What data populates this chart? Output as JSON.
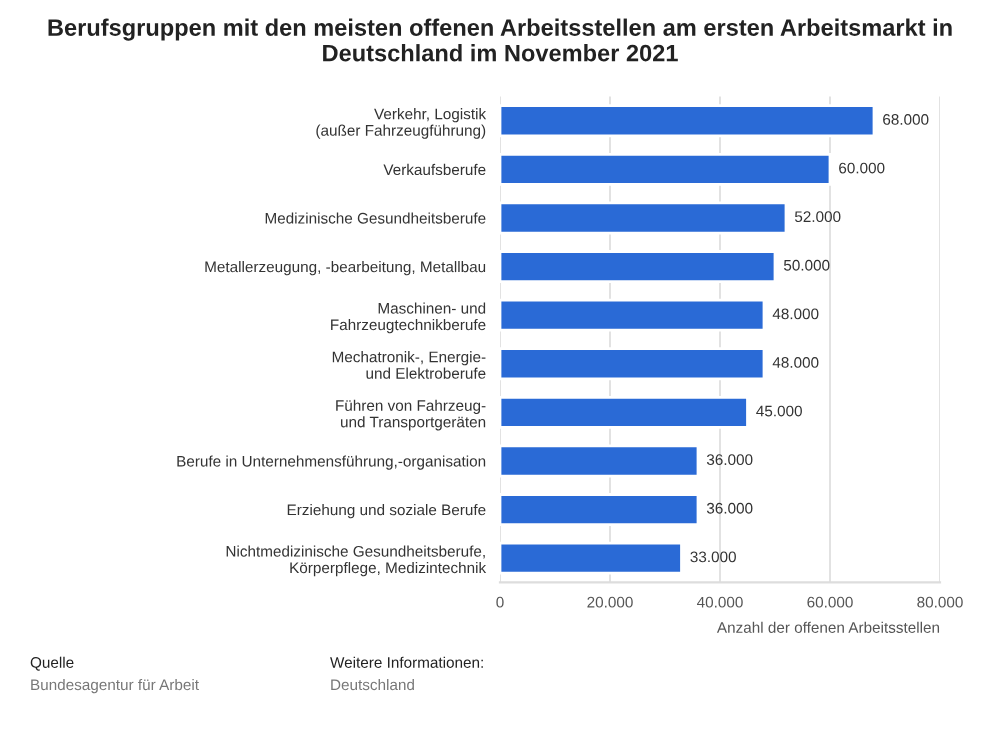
{
  "chart_data": {
    "type": "bar",
    "orientation": "horizontal",
    "title": "Berufsgruppen mit den meisten offenen Arbeitsstellen am ersten Arbeitsmarkt in Deutschland im November 2021",
    "xlabel": "Anzahl der offenen Arbeitsstellen",
    "categories": [
      "Verkehr, Logistik\n(außer Fahrzeugführung)",
      "Verkaufsberufe",
      "Medizinische Gesundheitsberufe",
      "Metallerzeugung, -bearbeitung, Metallbau",
      "Maschinen- und\nFahrzeugtechnikberufe",
      "Mechatronik-, Energie-\nund Elektroberufe",
      "Führen von Fahrzeug-\nund Transportgeräten",
      "Berufe in Unternehmensführung,-organisation",
      "Erziehung und soziale Berufe",
      "Nichtmedizinische Gesundheitsberufe,\nKörperpflege, Medizintechnik"
    ],
    "values": [
      68000,
      60000,
      52000,
      50000,
      48000,
      48000,
      45000,
      36000,
      36000,
      33000
    ],
    "value_labels": [
      "68.000",
      "60.000",
      "52.000",
      "50.000",
      "48.000",
      "48.000",
      "45.000",
      "36.000",
      "36.000",
      "33.000"
    ],
    "color": "#2a6ad6",
    "xlim": [
      0,
      80000
    ],
    "xticks": [
      0,
      {
        "value": 20000,
        "label": "20.000"
      },
      {
        "value": 40000,
        "label": "40.000"
      },
      {
        "value": 60000,
        "label": "60.000"
      },
      {
        "value": 80000,
        "label": "80.000"
      }
    ],
    "grid": "x",
    "legend": false,
    "annotations": [
      "Quelle\nBundesagentur für Arbeit",
      "Weitere Informationen:\nDeutschland"
    ]
  }
}
